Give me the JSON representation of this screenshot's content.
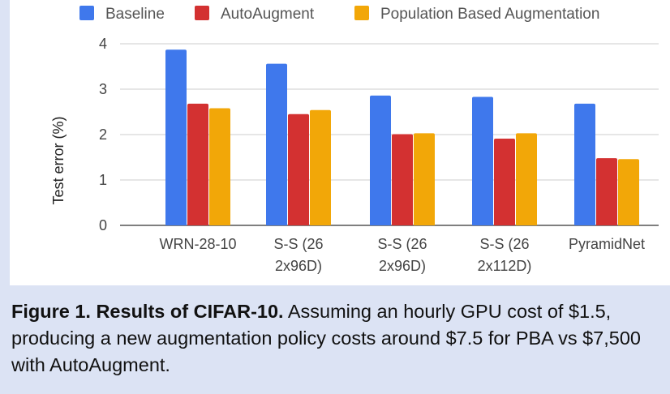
{
  "chart_data": {
    "type": "bar",
    "ylabel": "Test error (%)",
    "xlabel": "",
    "ylim": [
      0,
      4
    ],
    "yticks": [
      "0",
      "1",
      "2",
      "3",
      "4"
    ],
    "grid": true,
    "legend_position": "top",
    "categories": [
      [
        "WRN-28-10"
      ],
      [
        "S-S (26",
        "2x96D)"
      ],
      [
        "S-S (26",
        "2x96D)"
      ],
      [
        "S-S (26",
        "2x112D)"
      ],
      [
        "PyramidNet"
      ]
    ],
    "series": [
      {
        "name": "Baseline",
        "color": "#3f78ec",
        "values": [
          3.87,
          3.56,
          2.86,
          2.83,
          2.68
        ]
      },
      {
        "name": "AutoAugment",
        "color": "#d33131",
        "values": [
          2.68,
          2.45,
          2.01,
          1.91,
          1.48
        ]
      },
      {
        "name": "Population Based Augmentation",
        "color": "#f2a708",
        "values": [
          2.58,
          2.54,
          2.03,
          2.03,
          1.46
        ]
      }
    ]
  },
  "caption": {
    "label": "Figure 1. Results of CIFAR-10.",
    "text": " Assuming an hourly GPU cost of $1.5, producing a new augmentation policy costs around $7.5 for PBA vs $7,500 with AutoAugment."
  }
}
